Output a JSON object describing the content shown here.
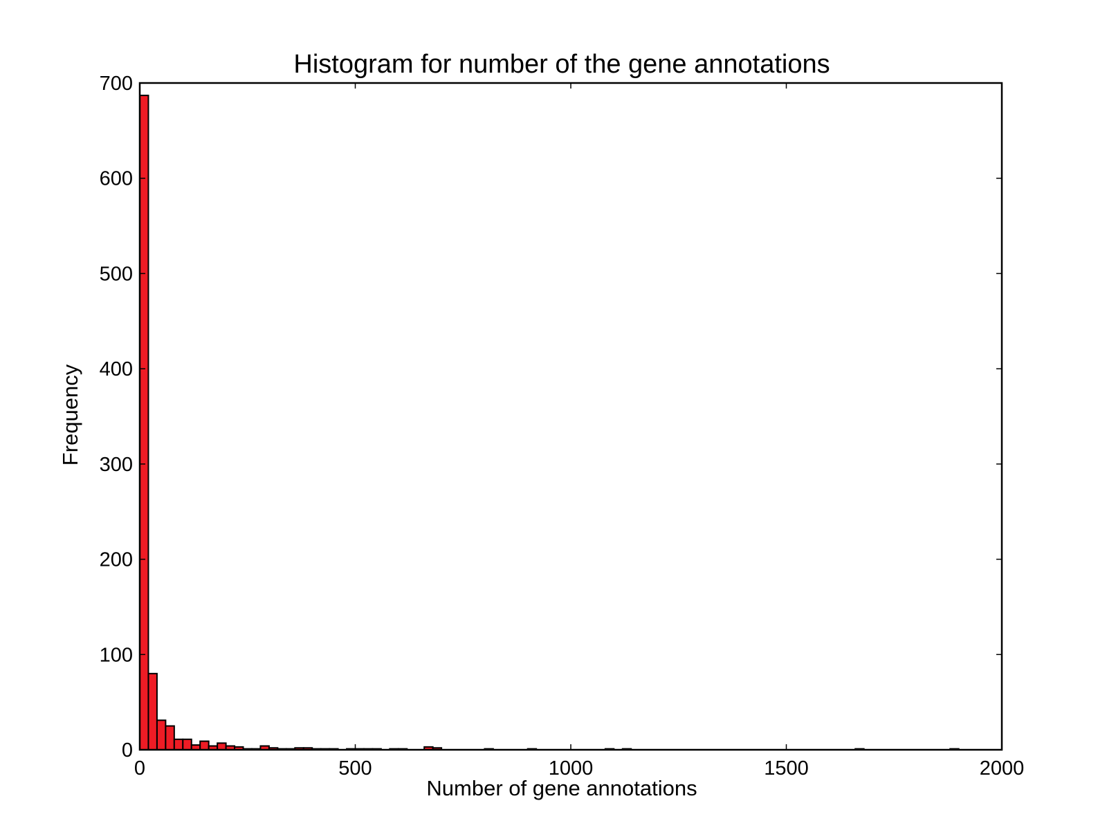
{
  "chart_data": {
    "type": "bar",
    "title": "Histogram for number of the gene annotations",
    "xlabel": "Number of gene annotations",
    "ylabel": "Frequency",
    "xlim": [
      0,
      2000
    ],
    "ylim": [
      0,
      700
    ],
    "xticks": [
      0,
      500,
      1000,
      1500,
      2000
    ],
    "yticks": [
      0,
      100,
      200,
      300,
      400,
      500,
      600,
      700
    ],
    "bin_width": 20,
    "grid": false,
    "bar_color": "#ee1c25",
    "edge_color": "#000000",
    "bins": [
      {
        "x": 0,
        "value": 687
      },
      {
        "x": 20,
        "value": 80
      },
      {
        "x": 40,
        "value": 31
      },
      {
        "x": 60,
        "value": 25
      },
      {
        "x": 80,
        "value": 11
      },
      {
        "x": 100,
        "value": 11
      },
      {
        "x": 120,
        "value": 5
      },
      {
        "x": 140,
        "value": 9
      },
      {
        "x": 160,
        "value": 4
      },
      {
        "x": 180,
        "value": 7
      },
      {
        "x": 200,
        "value": 4
      },
      {
        "x": 220,
        "value": 3
      },
      {
        "x": 240,
        "value": 1
      },
      {
        "x": 260,
        "value": 1
      },
      {
        "x": 280,
        "value": 4
      },
      {
        "x": 300,
        "value": 2
      },
      {
        "x": 320,
        "value": 1
      },
      {
        "x": 340,
        "value": 1
      },
      {
        "x": 360,
        "value": 2
      },
      {
        "x": 380,
        "value": 2
      },
      {
        "x": 400,
        "value": 1
      },
      {
        "x": 420,
        "value": 1
      },
      {
        "x": 440,
        "value": 1
      },
      {
        "x": 480,
        "value": 1
      },
      {
        "x": 500,
        "value": 1
      },
      {
        "x": 520,
        "value": 1
      },
      {
        "x": 540,
        "value": 1
      },
      {
        "x": 580,
        "value": 1
      },
      {
        "x": 600,
        "value": 1
      },
      {
        "x": 660,
        "value": 3
      },
      {
        "x": 680,
        "value": 2
      },
      {
        "x": 800,
        "value": 1
      },
      {
        "x": 900,
        "value": 1
      },
      {
        "x": 1080,
        "value": 1
      },
      {
        "x": 1120,
        "value": 1
      },
      {
        "x": 1660,
        "value": 1
      },
      {
        "x": 1880,
        "value": 1
      }
    ]
  }
}
